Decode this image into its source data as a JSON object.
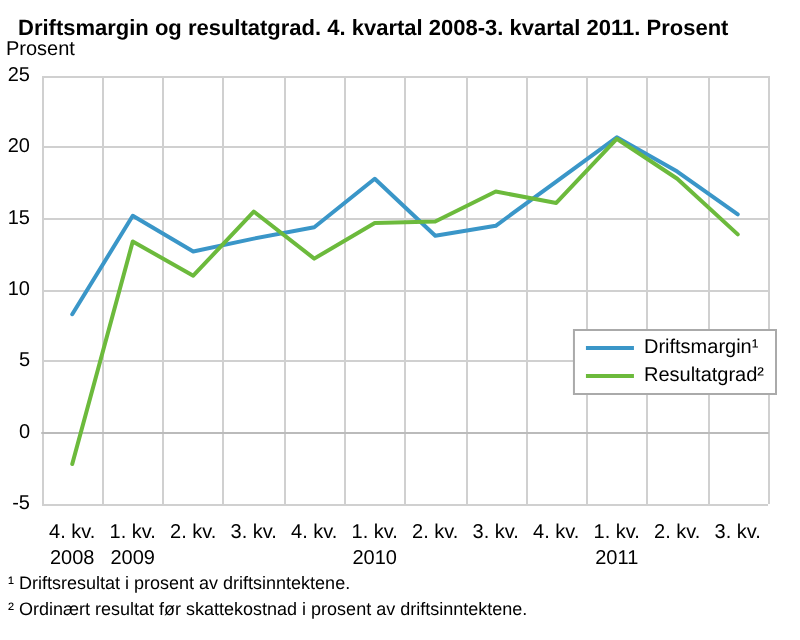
{
  "chart_data": {
    "type": "line",
    "title": "Driftsmargin og resultatgrad. 4. kvartal 2008-3. kvartal 2011. Prosent",
    "ylabel": "Prosent",
    "categories": [
      "4. kv.\n2008",
      "1. kv.\n2009",
      "2. kv.",
      "3. kv.",
      "4. kv.",
      "1. kv.\n2010",
      "2. kv.",
      "3. kv.",
      "4. kv.",
      "1. kv.\n2011",
      "2. kv.",
      "3. kv."
    ],
    "series": [
      {
        "name": "Driftsmargin¹",
        "color": "#3a96c8",
        "values": [
          8.3,
          15.2,
          12.7,
          13.6,
          14.4,
          17.8,
          13.8,
          14.5,
          17.6,
          20.7,
          18.3,
          15.3
        ]
      },
      {
        "name": "Resultatgrad²",
        "color": "#6cba3c",
        "values": [
          -2.2,
          13.4,
          11.0,
          15.5,
          12.2,
          14.7,
          14.8,
          16.9,
          16.1,
          20.6,
          17.8,
          13.9
        ]
      }
    ],
    "ylim": [
      -5,
      25
    ],
    "yticks": [
      -5,
      0,
      5,
      10,
      15,
      20,
      25
    ],
    "grid": true,
    "legend": "right",
    "marker": "none",
    "line_style": "solid",
    "annotations": [
      "¹ Driftsresultat i prosent av driftsinntektene.",
      "² Ordinært resultat før skattekostnad i prosent av driftsinntektene."
    ]
  }
}
